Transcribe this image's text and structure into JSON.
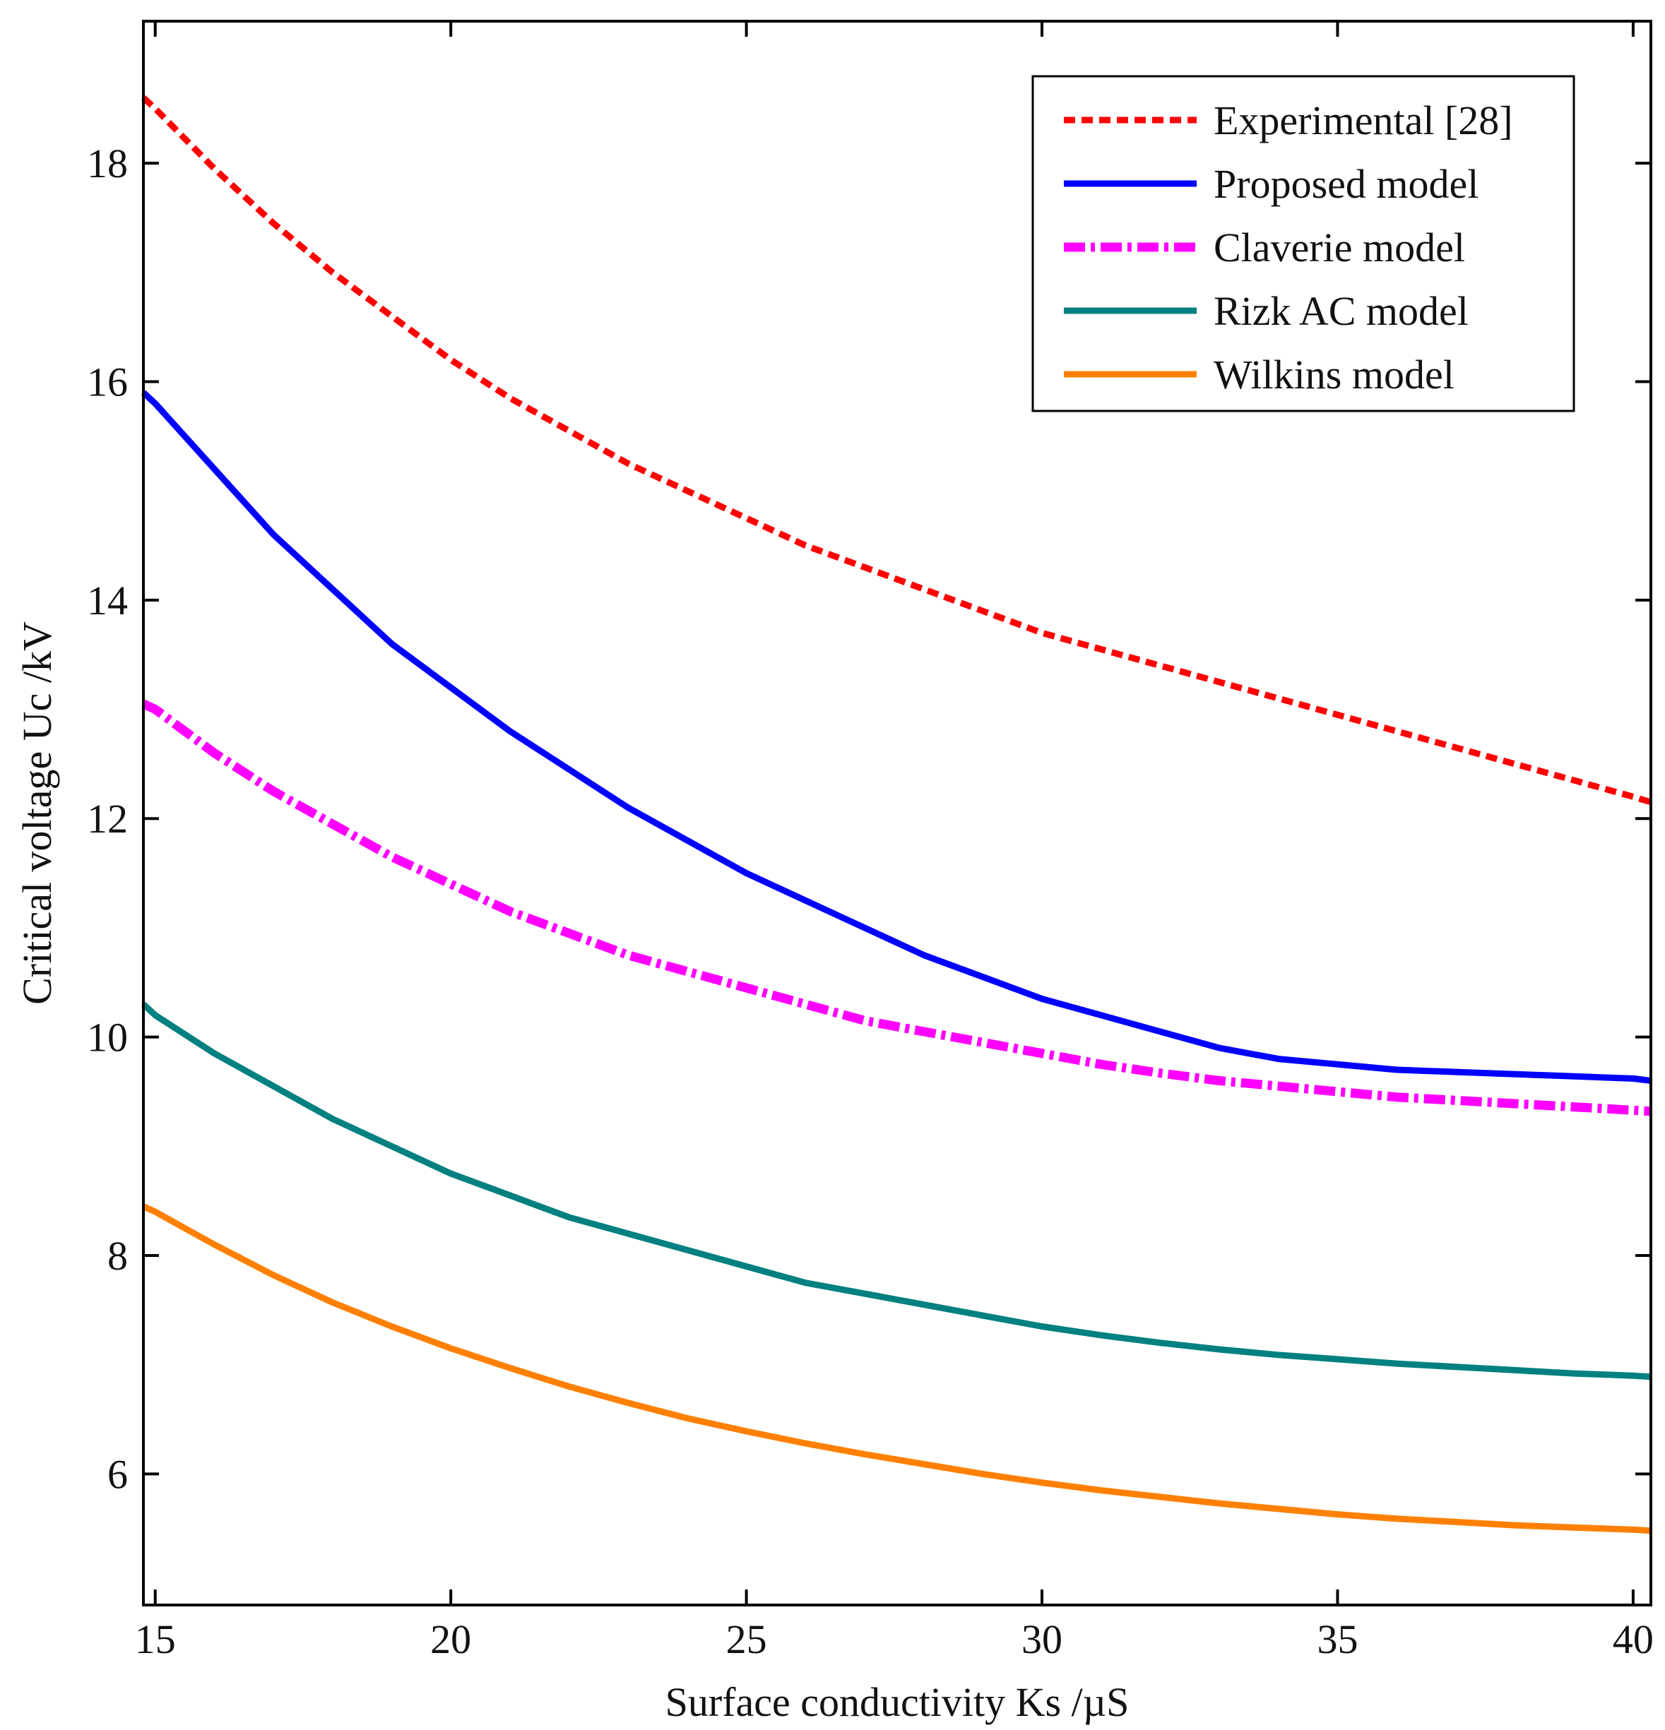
{
  "chart_data": {
    "type": "line",
    "title": "",
    "xlabel": "Surface conductivity Ks /µS",
    "ylabel": "Critical voltage Uc /kV",
    "xlim": [
      14.8,
      40.3
    ],
    "ylim": [
      4.8,
      19.3
    ],
    "xticks": [
      15,
      20,
      25,
      30,
      35,
      40
    ],
    "yticks": [
      6,
      8,
      10,
      12,
      14,
      16,
      18
    ],
    "grid": false,
    "legend_position": "top-right",
    "x": [
      14.8,
      15,
      16,
      17,
      18,
      19,
      20,
      21,
      22,
      23,
      24,
      25,
      26,
      27,
      28,
      29,
      30,
      31,
      32,
      33,
      34,
      35,
      36,
      37,
      38,
      39,
      40,
      40.3
    ],
    "series": [
      {
        "name": "Experimental [28]",
        "color": "#ff0000",
        "style": "dashed",
        "values": [
          18.6,
          18.5,
          17.95,
          17.45,
          17.0,
          16.6,
          16.2,
          15.85,
          15.55,
          15.25,
          15.0,
          14.75,
          14.5,
          14.3,
          14.1,
          13.9,
          13.7,
          13.55,
          13.4,
          13.25,
          13.1,
          12.95,
          12.8,
          12.65,
          12.5,
          12.35,
          12.2,
          12.15
        ]
      },
      {
        "name": "Proposed model",
        "color": "#0000ff",
        "style": "solid",
        "values": [
          15.9,
          15.8,
          15.2,
          14.6,
          14.1,
          13.6,
          13.2,
          12.8,
          12.45,
          12.1,
          11.8,
          11.5,
          11.25,
          11.0,
          10.75,
          10.55,
          10.35,
          10.2,
          10.05,
          9.9,
          9.8,
          9.75,
          9.7,
          9.68,
          9.66,
          9.64,
          9.62,
          9.6
        ]
      },
      {
        "name": "Claverie model",
        "color": "#ff00ff",
        "style": "dash-dot",
        "values": [
          13.05,
          13.0,
          12.6,
          12.25,
          11.95,
          11.65,
          11.4,
          11.15,
          10.95,
          10.75,
          10.6,
          10.45,
          10.3,
          10.15,
          10.05,
          9.95,
          9.85,
          9.75,
          9.67,
          9.6,
          9.55,
          9.5,
          9.45,
          9.42,
          9.39,
          9.36,
          9.33,
          9.32
        ]
      },
      {
        "name": "Rizk AC model",
        "color": "#008080",
        "style": "solid",
        "values": [
          10.3,
          10.2,
          9.85,
          9.55,
          9.25,
          9.0,
          8.75,
          8.55,
          8.35,
          8.2,
          8.05,
          7.9,
          7.75,
          7.65,
          7.55,
          7.45,
          7.35,
          7.27,
          7.2,
          7.14,
          7.09,
          7.05,
          7.01,
          6.98,
          6.95,
          6.92,
          6.9,
          6.89
        ]
      },
      {
        "name": "Wilkins model",
        "color": "#ff8000",
        "style": "solid",
        "values": [
          8.45,
          8.4,
          8.1,
          7.82,
          7.57,
          7.35,
          7.15,
          6.97,
          6.8,
          6.65,
          6.51,
          6.39,
          6.28,
          6.18,
          6.09,
          6.0,
          5.92,
          5.85,
          5.79,
          5.73,
          5.68,
          5.63,
          5.59,
          5.56,
          5.53,
          5.51,
          5.49,
          5.48
        ]
      }
    ]
  }
}
